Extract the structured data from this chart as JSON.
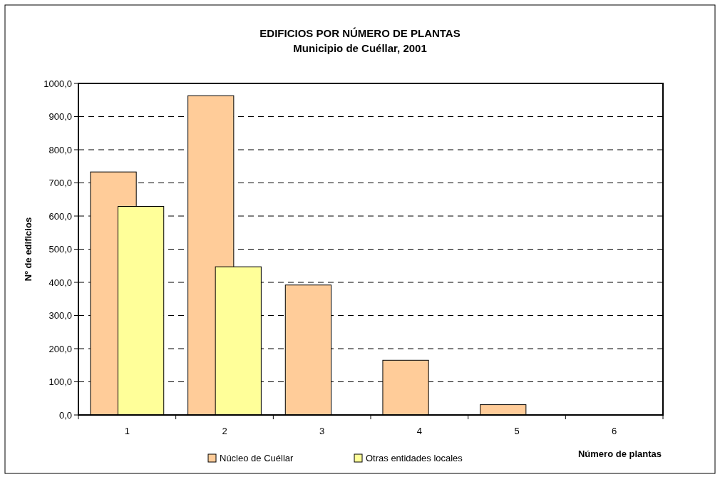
{
  "chart_data": {
    "type": "bar",
    "title": "EDIFICIOS POR NÚMERO DE PLANTAS",
    "subtitle": "Municipio de Cuéllar, 2001",
    "xlabel": "Número de plantas",
    "ylabel": "Nº de edificios",
    "categories": [
      "1",
      "2",
      "3",
      "4",
      "5",
      "6"
    ],
    "series": [
      {
        "name": "Núcleo de Cuéllar",
        "color": "#ffcc99",
        "values": [
          733,
          963,
          392,
          165,
          31,
          0
        ]
      },
      {
        "name": "Otras entidades locales",
        "color": "#ffff99",
        "values": [
          629,
          447,
          0,
          0,
          0,
          0
        ]
      }
    ],
    "ylim": [
      0,
      1000
    ],
    "yticks": [
      {
        "value": 0,
        "label": "0,0"
      },
      {
        "value": 100,
        "label": "100,0"
      },
      {
        "value": 200,
        "label": "200,0"
      },
      {
        "value": 300,
        "label": "300,0"
      },
      {
        "value": 400,
        "label": "400,0"
      },
      {
        "value": 500,
        "label": "500,0"
      },
      {
        "value": 600,
        "label": "600,0"
      },
      {
        "value": 700,
        "label": "700,0"
      },
      {
        "value": 800,
        "label": "800,0"
      },
      {
        "value": 900,
        "label": "900,0"
      },
      {
        "value": 1000,
        "label": "1000,0"
      }
    ],
    "grid": "y",
    "legend": "bottom"
  }
}
